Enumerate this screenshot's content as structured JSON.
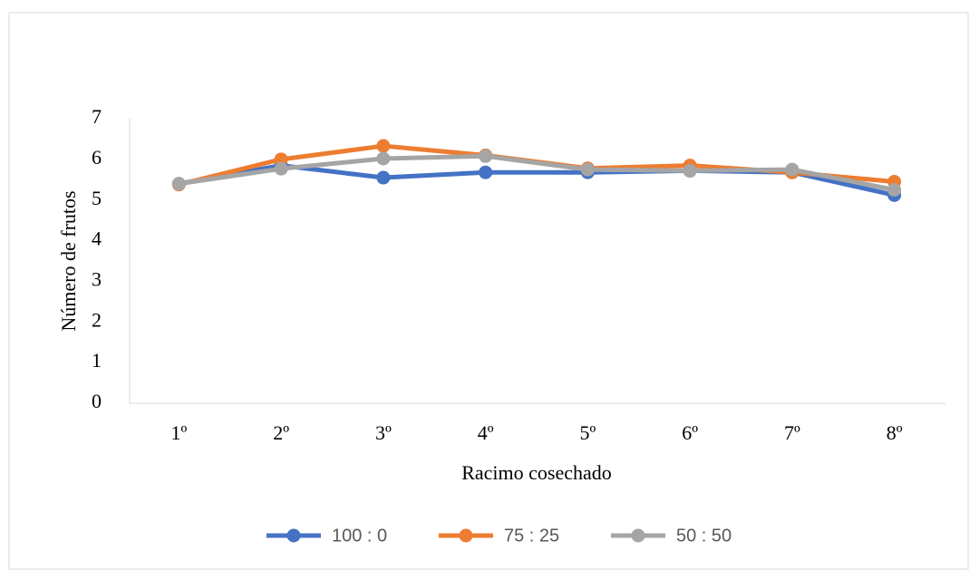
{
  "chart_data": {
    "type": "line",
    "x_label": "Racimo cosechado",
    "y_label": "Número de frutos",
    "categories": [
      "1º",
      "2º",
      "3º",
      "4º",
      "5º",
      "6º",
      "7º",
      "8º"
    ],
    "series": [
      {
        "name": "100 : 0",
        "color": "#4472c4",
        "values": [
          5.4,
          5.85,
          5.55,
          5.68,
          5.68,
          5.72,
          5.68,
          5.12
        ]
      },
      {
        "name": "75 : 25",
        "color": "#ed7d31",
        "values": [
          5.38,
          6.0,
          6.33,
          6.1,
          5.78,
          5.85,
          5.68,
          5.45
        ]
      },
      {
        "name": "50 : 50",
        "color": "#a5a5a5",
        "values": [
          5.4,
          5.77,
          6.02,
          6.08,
          5.75,
          5.72,
          5.75,
          5.25
        ]
      }
    ],
    "ylim": [
      0,
      7
    ],
    "yticks": [
      0,
      1,
      2,
      3,
      4,
      5,
      6,
      7
    ],
    "grid": false
  }
}
